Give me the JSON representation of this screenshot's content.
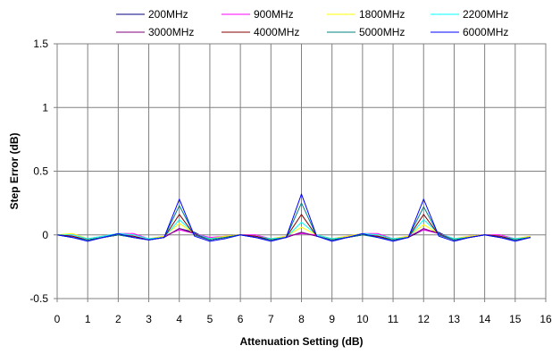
{
  "chart_data": {
    "type": "line",
    "title": "",
    "xlabel": "Attenuation Setting (dB)",
    "ylabel": "Step Error (dB)",
    "xlim": [
      0,
      16
    ],
    "ylim": [
      -0.5,
      1.5
    ],
    "xticks": [
      "0",
      "1",
      "2",
      "3",
      "4",
      "5",
      "6",
      "7",
      "8",
      "9",
      "10",
      "11",
      "12",
      "13",
      "14",
      "15",
      "16"
    ],
    "yticks": [
      "-0.5",
      "0",
      "0.5",
      "1",
      "1.5"
    ],
    "grid": true,
    "legend_position": "top",
    "x": [
      0,
      0.5,
      1,
      1.5,
      2,
      2.5,
      3,
      3.5,
      4,
      4.5,
      5,
      5.5,
      6,
      6.5,
      7,
      7.5,
      8,
      8.5,
      9,
      9.5,
      10,
      10.5,
      11,
      11.5,
      12,
      12.5,
      13,
      13.5,
      14,
      14.5,
      15,
      15.5
    ],
    "series": [
      {
        "name": "200MHz",
        "color": "#000080",
        "values": [
          0,
          -0.02,
          -0.04,
          -0.02,
          0,
          -0.02,
          -0.04,
          -0.02,
          0.05,
          0.02,
          -0.04,
          -0.02,
          0,
          -0.02,
          -0.04,
          -0.02,
          0.02,
          -0.01,
          -0.04,
          -0.02,
          0,
          -0.01,
          -0.04,
          -0.02,
          0.04,
          0.02,
          -0.04,
          -0.02,
          0,
          -0.02,
          -0.04,
          -0.02
        ]
      },
      {
        "name": "900MHz",
        "color": "#ff00ff",
        "values": [
          0,
          0,
          -0.03,
          -0.01,
          0.01,
          0.01,
          -0.03,
          -0.01,
          0.04,
          0.01,
          -0.02,
          -0.01,
          0,
          0,
          -0.03,
          -0.01,
          0.01,
          0,
          -0.03,
          -0.01,
          0.01,
          0.01,
          -0.03,
          -0.01,
          0.04,
          0.01,
          -0.03,
          -0.01,
          0,
          0,
          -0.03,
          -0.01
        ]
      },
      {
        "name": "1800MHz",
        "color": "#ffff00",
        "values": [
          0,
          0.01,
          -0.03,
          -0.01,
          0.01,
          0,
          -0.03,
          -0.01,
          0.09,
          0.01,
          -0.03,
          -0.01,
          0,
          -0.01,
          -0.03,
          -0.01,
          0.06,
          0,
          -0.03,
          -0.01,
          0.01,
          0,
          -0.03,
          -0.01,
          0.08,
          0.01,
          -0.03,
          -0.01,
          0,
          -0.01,
          -0.03,
          -0.01
        ]
      },
      {
        "name": "2200MHz",
        "color": "#00ffff",
        "values": [
          0,
          0,
          -0.03,
          -0.01,
          0.01,
          0,
          -0.03,
          -0.02,
          0.12,
          0.01,
          -0.03,
          -0.02,
          0,
          -0.01,
          -0.03,
          -0.02,
          0.1,
          0,
          -0.03,
          -0.02,
          0.01,
          0,
          -0.03,
          -0.02,
          0.12,
          0.01,
          -0.03,
          -0.02,
          0,
          -0.01,
          -0.03,
          -0.02
        ]
      },
      {
        "name": "3000MHz",
        "color": "#800080",
        "values": [
          0,
          -0.01,
          -0.04,
          -0.02,
          0,
          -0.01,
          -0.04,
          -0.02,
          0.05,
          0.01,
          -0.04,
          -0.02,
          0,
          -0.01,
          -0.04,
          -0.02,
          0.02,
          -0.01,
          -0.04,
          -0.02,
          0,
          -0.01,
          -0.04,
          -0.02,
          0.05,
          0.01,
          -0.04,
          -0.02,
          0,
          -0.01,
          -0.04,
          -0.02
        ]
      },
      {
        "name": "4000MHz",
        "color": "#800000",
        "values": [
          0,
          -0.01,
          -0.04,
          -0.02,
          0,
          -0.01,
          -0.04,
          -0.02,
          0.16,
          0,
          -0.04,
          -0.02,
          0,
          -0.01,
          -0.04,
          -0.02,
          0.16,
          -0.01,
          -0.04,
          -0.02,
          0,
          -0.01,
          -0.04,
          -0.02,
          0.16,
          0,
          -0.04,
          -0.02,
          0,
          -0.01,
          -0.04,
          -0.02
        ]
      },
      {
        "name": "5000MHz",
        "color": "#008080",
        "values": [
          0,
          -0.02,
          -0.04,
          -0.02,
          0,
          -0.02,
          -0.04,
          -0.02,
          0.23,
          0,
          -0.04,
          -0.02,
          0,
          -0.02,
          -0.04,
          -0.02,
          0.25,
          -0.01,
          -0.04,
          -0.02,
          0,
          -0.02,
          -0.04,
          -0.02,
          0.22,
          0,
          -0.04,
          -0.02,
          0,
          -0.02,
          -0.04,
          -0.02
        ]
      },
      {
        "name": "6000MHz",
        "color": "#0000ff",
        "values": [
          0,
          -0.02,
          -0.05,
          -0.02,
          0.01,
          -0.02,
          -0.04,
          -0.02,
          0.28,
          -0.01,
          -0.05,
          -0.03,
          0,
          -0.02,
          -0.05,
          -0.02,
          0.32,
          -0.01,
          -0.05,
          -0.02,
          0.01,
          -0.02,
          -0.05,
          -0.02,
          0.28,
          -0.01,
          -0.05,
          -0.02,
          0,
          -0.02,
          -0.05,
          -0.02
        ]
      }
    ]
  }
}
